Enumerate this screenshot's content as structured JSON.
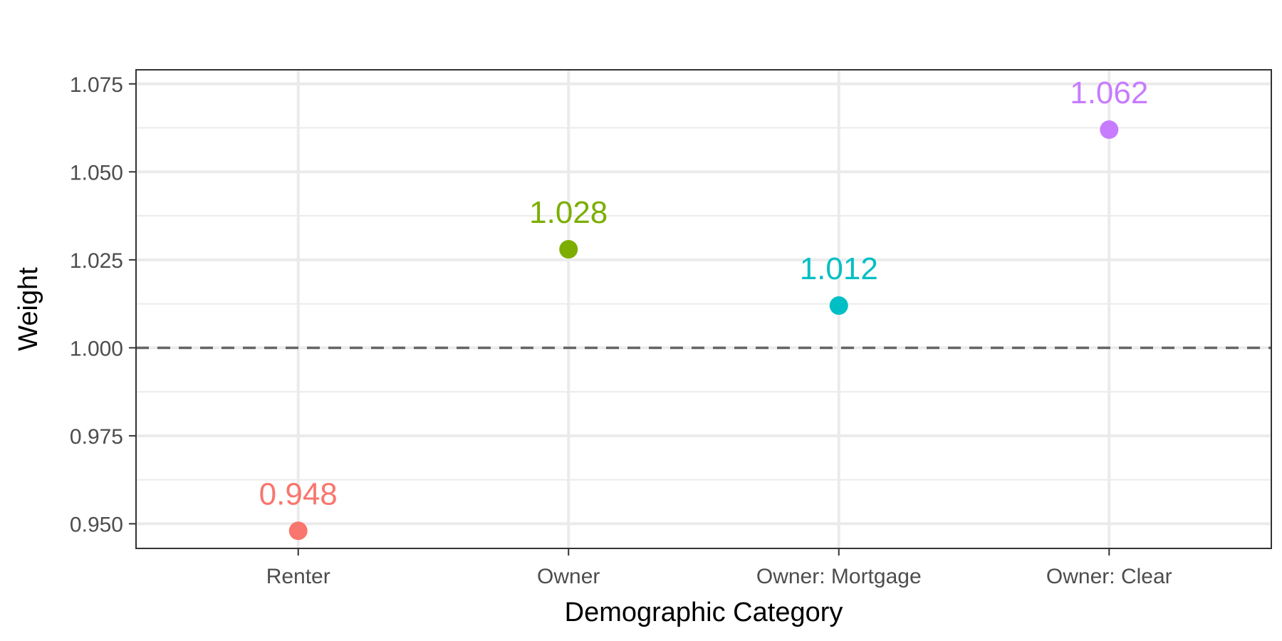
{
  "chart_data": {
    "type": "scatter",
    "title": "",
    "xlabel": "Demographic Category",
    "ylabel": "Weight",
    "categories": [
      "Renter",
      "Owner",
      "Owner: Mortgage",
      "Owner: Clear"
    ],
    "values": [
      0.948,
      1.028,
      1.012,
      1.062
    ],
    "data_labels": [
      "0.948",
      "1.028",
      "1.012",
      "1.062"
    ],
    "point_colors": [
      "#F8766D",
      "#7CAE00",
      "#00BFC4",
      "#C77CFF"
    ],
    "ylim": [
      0.943,
      1.079
    ],
    "y_ticks": [
      0.95,
      0.975,
      1.0,
      1.025,
      1.05,
      1.075
    ],
    "y_tick_labels": [
      "0.950",
      "0.975",
      "1.000",
      "1.025",
      "1.050",
      "1.075"
    ],
    "reference_line": {
      "y": 1.0,
      "style": "dashed",
      "color": "#666666"
    },
    "grid": true,
    "legend": "none"
  }
}
